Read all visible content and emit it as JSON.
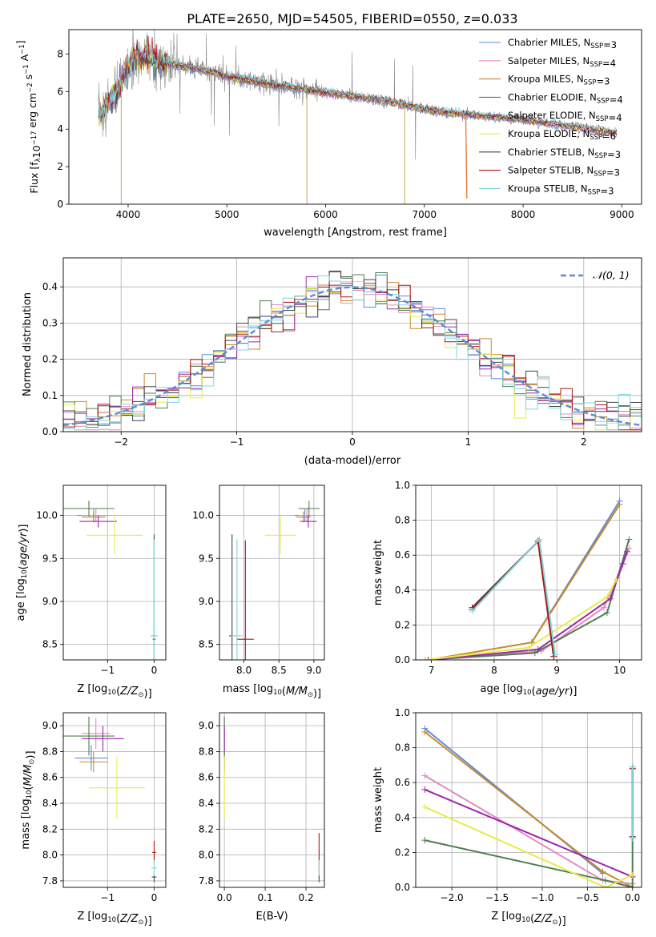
{
  "figure_title": "PLATE=2650, MJD=54505, FIBERID=0550, z=0.033",
  "series_styles": [
    {
      "key": "chab_miles",
      "color": "#5b8bd6",
      "legend_label": "Chabrier MILES, N",
      "legend_sub": "SSP",
      "legend_eq": "=3"
    },
    {
      "key": "salp_miles",
      "color": "#e48ac0",
      "legend_label": "Salpeter MILES, N",
      "legend_sub": "SSP",
      "legend_eq": "=4"
    },
    {
      "key": "krou_miles",
      "color": "#c88a2a",
      "legend_label": "Kroupa MILES, N",
      "legend_sub": "SSP",
      "legend_eq": "=3"
    },
    {
      "key": "chab_elodie",
      "color": "#4f7f4f",
      "legend_label": "Chabrier ELODIE, N",
      "legend_sub": "SSP",
      "legend_eq": "=4"
    },
    {
      "key": "salp_elodie",
      "color": "#9b27b0",
      "legend_label": "Salpeter ELODIE, N",
      "legend_sub": "SSP",
      "legend_eq": "=4"
    },
    {
      "key": "krou_elodie",
      "color": "#e6ec4a",
      "legend_label": "Kroupa ELODIE, N",
      "legend_sub": "SSP",
      "legend_eq": "=6"
    },
    {
      "key": "chab_stelib",
      "color": "#444444",
      "legend_label": "Chabrier STELIB, N",
      "legend_sub": "SSP",
      "legend_eq": "=3"
    },
    {
      "key": "salp_stelib",
      "color": "#b01515",
      "legend_label": "Salpeter STELIB, N",
      "legend_sub": "SSP",
      "legend_eq": "=3"
    },
    {
      "key": "krou_stelib",
      "color": "#7fd6dc",
      "legend_label": "Kroupa STELIB, N",
      "legend_sub": "SSP",
      "legend_eq": "=3"
    }
  ],
  "colors": {
    "data_spectrum": "#888888",
    "model_orange": "#e8743a",
    "gauss": "#5b8bd6",
    "grid": "#b0b0b0"
  },
  "chart_data": [
    {
      "id": "spectrum",
      "type": "line",
      "xlabel": "wavelength [Angstrom, rest frame]",
      "ylabel_pre": "Flux [f",
      "ylabel_sub": "λ",
      "ylabel_mid": "10",
      "ylabel_sup1": "−17",
      "ylabel_post": " erg cm",
      "ylabel_sup2": "−2",
      "ylabel_post2": " s",
      "ylabel_sup3": "−1",
      "ylabel_post3": " A",
      "ylabel_sup4": "−1",
      "ylabel_end": "]",
      "xlim": [
        3400,
        9200
      ],
      "ylim": [
        0,
        9.3
      ],
      "xticks": [
        4000,
        5000,
        6000,
        7000,
        8000,
        9000
      ],
      "xtick_labels": [
        "4000",
        "5000",
        "6000",
        "7000",
        "8000",
        "9000"
      ],
      "yticks": [
        0,
        2,
        4,
        6,
        8
      ],
      "ytick_labels": [
        "0",
        "2",
        "4",
        "6",
        "8"
      ],
      "grid": false,
      "legend_position": "top-right",
      "model_continuum": {
        "x": [
          3700,
          3750,
          3800,
          3850,
          3900,
          3950,
          4000,
          4050,
          4100,
          4200,
          4300,
          4400,
          4500,
          4600,
          4800,
          5000,
          5200,
          5400,
          5600,
          5800,
          6000,
          6200,
          6400,
          6600,
          6800,
          7000,
          7200,
          7400,
          7600,
          7800,
          8000,
          8200,
          8400,
          8600,
          8800,
          8950
        ],
        "y": [
          4.6,
          5.1,
          5.5,
          5.7,
          6.1,
          6.9,
          7.3,
          7.6,
          7.8,
          7.9,
          7.6,
          7.5,
          7.4,
          7.3,
          7.1,
          6.8,
          6.6,
          6.4,
          6.3,
          6.1,
          5.95,
          5.8,
          5.65,
          5.5,
          5.3,
          5.05,
          4.9,
          4.8,
          4.7,
          4.6,
          4.5,
          4.35,
          4.2,
          4.05,
          3.9,
          3.8
        ]
      },
      "model_end_wavelength": 8950,
      "data_end_wavelength": 7450,
      "orange_drop_x": 7430
    },
    {
      "id": "residuals",
      "type": "histogram",
      "xlabel": "(data-model)/error",
      "ylabel": "Normed distribution",
      "xlim": [
        -2.5,
        2.5
      ],
      "ylim": [
        0,
        0.48
      ],
      "xticks": [
        -2,
        -1,
        0,
        1,
        2
      ],
      "xtick_labels": [
        "−2",
        "−1",
        "0",
        "1",
        "2"
      ],
      "yticks": [
        0,
        0.1,
        0.2,
        0.3,
        0.4
      ],
      "ytick_labels": [
        "0.0",
        "0.1",
        "0.2",
        "0.3",
        "0.4"
      ],
      "grid": true,
      "legend_position": "top-right",
      "gauss_label": "𝒩(0, 1)",
      "bin_width": 0.1
    },
    {
      "id": "age_vs_Z",
      "type": "scatter",
      "xlabel_pre": "Z [log",
      "xlabel_sub": "10",
      "xlabel_post": "(Z/Z",
      "xlabel_sub2": "⊙",
      "xlabel_end": ")]",
      "ylabel_pre": "age  [log",
      "ylabel_sub": "10",
      "ylabel_post": "(age/yr)]",
      "xlim": [
        -1.95,
        0.25
      ],
      "ylim": [
        8.32,
        10.35
      ],
      "xticks": [
        -1,
        0
      ],
      "xtick_labels": [
        "−1",
        "0"
      ],
      "yticks": [
        8.5,
        9.0,
        9.5,
        10.0
      ],
      "ytick_labels": [
        "8.5",
        "9.0",
        "9.5",
        "10.0"
      ],
      "grid": true,
      "points": [
        {
          "s": 0,
          "x": -1.3,
          "y": 10.0,
          "ex": 0.35,
          "ey": 0.07
        },
        {
          "s": 1,
          "x": -1.25,
          "y": 10.0,
          "ex": 0.3,
          "ey": 0.08
        },
        {
          "s": 2,
          "x": -1.3,
          "y": 9.98,
          "ex": 0.25,
          "ey": 0.06
        },
        {
          "s": 3,
          "x": -1.4,
          "y": 10.08,
          "ex": 0.55,
          "ey": 0.09
        },
        {
          "s": 4,
          "x": -1.2,
          "y": 9.93,
          "ex": 0.4,
          "ey": 0.07
        },
        {
          "s": 5,
          "x": -0.85,
          "y": 9.77,
          "ex": 0.6,
          "ey": 0.22
        },
        {
          "s": 6,
          "x": 0.0,
          "y": 8.6,
          "ex": 0.05,
          "ey": 1.18
        },
        {
          "s": 7,
          "x": 0.0,
          "y": 8.56,
          "ex": 0.03,
          "ey": 1.15
        },
        {
          "s": 8,
          "x": 0.0,
          "y": 8.6,
          "ex": 0.08,
          "ey": 1.12
        }
      ]
    },
    {
      "id": "age_vs_mass",
      "type": "scatter",
      "xlabel_pre": "mass [log",
      "xlabel_sub": "10",
      "xlabel_post": "(M/M",
      "xlabel_sub2": "⊙",
      "xlabel_end": ")]",
      "xlim": [
        7.65,
        9.15
      ],
      "ylim": [
        8.32,
        10.35
      ],
      "xticks": [
        8.0,
        8.5,
        9.0
      ],
      "xtick_labels": [
        "8.0",
        "8.5",
        "9.0"
      ],
      "yticks": [
        8.5,
        9.0,
        9.5,
        10.0
      ],
      "ytick_labels": [
        "8.5",
        "9.0",
        "9.5",
        "10.0"
      ],
      "grid": true,
      "points": [
        {
          "s": 0,
          "x": 8.87,
          "y": 10.0,
          "ex": 0.15,
          "ey": 0.07
        },
        {
          "s": 1,
          "x": 8.9,
          "y": 10.0,
          "ex": 0.12,
          "ey": 0.08
        },
        {
          "s": 2,
          "x": 8.85,
          "y": 9.98,
          "ex": 0.1,
          "ey": 0.06
        },
        {
          "s": 3,
          "x": 8.93,
          "y": 10.08,
          "ex": 0.15,
          "ey": 0.09
        },
        {
          "s": 4,
          "x": 8.92,
          "y": 9.93,
          "ex": 0.12,
          "ey": 0.07
        },
        {
          "s": 5,
          "x": 8.52,
          "y": 9.77,
          "ex": 0.22,
          "ey": 0.22
        },
        {
          "s": 6,
          "x": 7.83,
          "y": 8.6,
          "ex": 0.04,
          "ey": 1.18
        },
        {
          "s": 7,
          "x": 8.02,
          "y": 8.56,
          "ex": 0.12,
          "ey": 1.15
        },
        {
          "s": 8,
          "x": 7.9,
          "y": 8.6,
          "ex": 0.08,
          "ey": 1.12
        }
      ]
    },
    {
      "id": "weight_vs_age",
      "type": "line",
      "xlabel_pre": "age  [log",
      "xlabel_sub": "10",
      "xlabel_post": "(age/yr)]",
      "ylabel": "mass weight",
      "xlim": [
        6.75,
        10.35
      ],
      "ylim": [
        0,
        1.0
      ],
      "xticks": [
        7,
        8,
        9,
        10
      ],
      "xtick_labels": [
        "7",
        "8",
        "9",
        "10"
      ],
      "yticks": [
        0,
        0.2,
        0.4,
        0.6,
        0.8,
        1.0
      ],
      "ytick_labels": [
        "0.0",
        "0.2",
        "0.4",
        "0.6",
        "0.8",
        "1.0"
      ],
      "grid": true,
      "series": [
        {
          "s": 0,
          "x": [
            8.6,
            10.0
          ],
          "y": [
            0.1,
            0.91
          ]
        },
        {
          "s": 2,
          "x": [
            6.95,
            8.6,
            10.0
          ],
          "y": [
            0.0,
            0.1,
            0.89
          ]
        },
        {
          "s": 1,
          "x": [
            6.95,
            8.75,
            9.75,
            10.05,
            10.15
          ],
          "y": [
            0.0,
            0.05,
            0.3,
            0.55,
            0.64
          ]
        },
        {
          "s": 3,
          "x": [
            6.9,
            8.65,
            9.8,
            10.15
          ],
          "y": [
            0.0,
            0.04,
            0.27,
            0.69
          ]
        },
        {
          "s": 4,
          "x": [
            6.95,
            8.7,
            9.85,
            10.05,
            10.12
          ],
          "y": [
            0.0,
            0.06,
            0.35,
            0.55,
            0.62
          ]
        },
        {
          "s": 5,
          "x": [
            6.9,
            8.55,
            9.8,
            9.95
          ],
          "y": [
            0.0,
            0.07,
            0.36,
            0.46
          ]
        },
        {
          "s": 6,
          "x": [
            7.65,
            8.7,
            8.95
          ],
          "y": [
            0.3,
            0.68,
            0.02
          ]
        },
        {
          "s": 7,
          "x": [
            7.65,
            8.7,
            8.95
          ],
          "y": [
            0.29,
            0.68,
            0.02
          ]
        },
        {
          "s": 8,
          "x": [
            7.65,
            8.72,
            8.97
          ],
          "y": [
            0.28,
            0.69,
            0.03
          ]
        }
      ]
    },
    {
      "id": "mass_vs_Z",
      "type": "scatter",
      "xlabel_pre": "Z [log",
      "xlabel_sub": "10",
      "xlabel_post": "(Z/Z",
      "xlabel_sub2": "⊙",
      "xlabel_end": ")]",
      "ylabel_pre": "mass [log",
      "ylabel_sub": "10",
      "ylabel_post": "(M/M",
      "ylabel_sub2": "⊙",
      "ylabel_end": ")]",
      "xlim": [
        -1.95,
        0.25
      ],
      "ylim": [
        7.75,
        9.1
      ],
      "xticks": [
        -1,
        0
      ],
      "xtick_labels": [
        "−1",
        "0"
      ],
      "yticks": [
        7.8,
        8.0,
        8.2,
        8.4,
        8.6,
        8.8,
        9.0
      ],
      "ytick_labels": [
        "7.8",
        "8.0",
        "8.2",
        "8.4",
        "8.6",
        "8.8",
        "9.0"
      ],
      "grid": true,
      "points": [
        {
          "s": 0,
          "x": -1.35,
          "y": 8.75,
          "ex": 0.35,
          "ey": 0.1
        },
        {
          "s": 1,
          "x": -1.25,
          "y": 8.94,
          "ex": 0.3,
          "ey": 0.12
        },
        {
          "s": 2,
          "x": -1.3,
          "y": 8.72,
          "ex": 0.3,
          "ey": 0.08
        },
        {
          "s": 3,
          "x": -1.4,
          "y": 8.92,
          "ex": 0.55,
          "ey": 0.15
        },
        {
          "s": 4,
          "x": -1.1,
          "y": 8.9,
          "ex": 0.45,
          "ey": 0.1
        },
        {
          "s": 5,
          "x": -0.8,
          "y": 8.52,
          "ex": 0.6,
          "ey": 0.24
        },
        {
          "s": 6,
          "x": 0.0,
          "y": 7.83,
          "ex": 0.05,
          "ey": 0.04
        },
        {
          "s": 7,
          "x": 0.0,
          "y": 8.02,
          "ex": 0.04,
          "ey": 0.09
        },
        {
          "s": 8,
          "x": 0.0,
          "y": 7.9,
          "ex": 0.06,
          "ey": 0.06
        }
      ]
    },
    {
      "id": "mass_vs_ebv",
      "type": "scatter",
      "xlabel": "E(B-V)",
      "xlim": [
        -0.012,
        0.245
      ],
      "ylim": [
        7.75,
        9.1
      ],
      "xticks": [
        0.0,
        0.1,
        0.2
      ],
      "xtick_labels": [
        "0.0",
        "0.1",
        "0.2"
      ],
      "yticks": [
        7.8,
        8.0,
        8.2,
        8.4,
        8.6,
        8.8,
        9.0
      ],
      "ytick_labels": [
        "7.8",
        "8.0",
        "8.2",
        "8.4",
        "8.6",
        "8.8",
        "9.0"
      ],
      "grid": true,
      "points": [
        {
          "s": 0,
          "x": 0.0,
          "y": 8.75,
          "ex": 0.001,
          "ey": 0.1
        },
        {
          "s": 1,
          "x": 0.0,
          "y": 8.94,
          "ex": 0.001,
          "ey": 0.12
        },
        {
          "s": 2,
          "x": 0.0,
          "y": 8.72,
          "ex": 0.001,
          "ey": 0.08
        },
        {
          "s": 3,
          "x": 0.0,
          "y": 8.92,
          "ex": 0.001,
          "ey": 0.15
        },
        {
          "s": 4,
          "x": 0.0,
          "y": 8.9,
          "ex": 0.001,
          "ey": 0.1
        },
        {
          "s": 5,
          "x": 0.0,
          "y": 8.52,
          "ex": 0.001,
          "ey": 0.24
        },
        {
          "s": 6,
          "x": 0.232,
          "y": 7.83,
          "ex": 0.001,
          "ey": 0.04
        },
        {
          "s": 7,
          "x": 0.232,
          "y": 8.02,
          "ex": 0.001,
          "ey": 0.15
        },
        {
          "s": 8,
          "x": 0.232,
          "y": 7.9,
          "ex": 0.001,
          "ey": 0.06
        }
      ]
    },
    {
      "id": "weight_vs_Z",
      "type": "line",
      "xlabel_pre": "Z [log",
      "xlabel_sub": "10",
      "xlabel_post": "(Z/Z",
      "xlabel_sub2": "⊙",
      "xlabel_end": ")]",
      "ylabel": "mass weight",
      "xlim": [
        -2.4,
        0.1
      ],
      "ylim": [
        0,
        1.0
      ],
      "xticks": [
        -2.0,
        -1.5,
        -1.0,
        -0.5,
        0.0
      ],
      "xtick_labels": [
        "−2.0",
        "−1.5",
        "−1.0",
        "−0.5",
        "0.0"
      ],
      "yticks": [
        0,
        0.2,
        0.4,
        0.6,
        0.8,
        1.0
      ],
      "ytick_labels": [
        "0.0",
        "0.2",
        "0.4",
        "0.6",
        "0.8",
        "1.0"
      ],
      "grid": true,
      "series": [
        {
          "s": 0,
          "x": [
            -2.3,
            -0.33
          ],
          "y": [
            0.91,
            0.08
          ]
        },
        {
          "s": 2,
          "x": [
            -2.3,
            -0.33,
            0.0
          ],
          "y": [
            0.89,
            0.09,
            0.0
          ]
        },
        {
          "s": 1,
          "x": [
            -2.3,
            -0.33,
            0.0
          ],
          "y": [
            0.64,
            0.04,
            0.02
          ]
        },
        {
          "s": 3,
          "x": [
            -2.3,
            -0.3,
            0.0,
            0.0
          ],
          "y": [
            0.27,
            0.04,
            0.0,
            0.69
          ]
        },
        {
          "s": 4,
          "x": [
            -2.3,
            0.0
          ],
          "y": [
            0.56,
            0.06
          ]
        },
        {
          "s": 5,
          "x": [
            -2.3,
            -0.3,
            0.0
          ],
          "y": [
            0.46,
            0.0,
            0.07
          ]
        },
        {
          "s": 6,
          "x": [
            0.0,
            0.0
          ],
          "y": [
            0.29,
            0.68
          ]
        },
        {
          "s": 7,
          "x": [
            0.0,
            0.0
          ],
          "y": [
            0.29,
            0.68
          ]
        },
        {
          "s": 8,
          "x": [
            0.0,
            0.0
          ],
          "y": [
            0.28,
            0.69
          ]
        }
      ]
    }
  ]
}
